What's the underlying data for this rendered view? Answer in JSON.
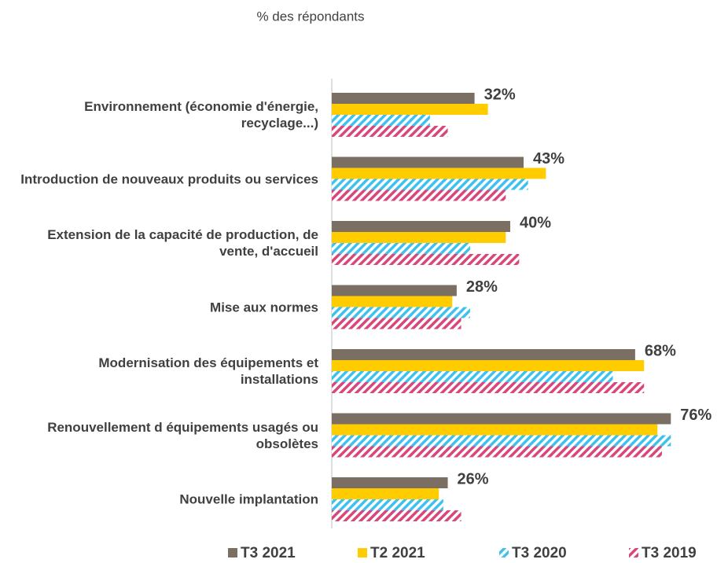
{
  "chart_data": {
    "type": "bar",
    "orientation": "horizontal",
    "subtitle": "% des répondants",
    "categories": [
      "Environnement (économie d'énergie, recyclage...)",
      "Introduction de nouveaux produits ou services",
      "Extension de la capacité de production, de vente, d'accueil",
      "Mise aux normes",
      "Modernisation des équipements et installations",
      "Renouvellement d équipements usagés ou obsolètes",
      "Nouvelle implantation"
    ],
    "series": [
      {
        "name": "T3 2021",
        "color": "#7b6f63",
        "pattern": "solid",
        "values": [
          32,
          43,
          40,
          28,
          68,
          76,
          26
        ],
        "value_labels": [
          "32%",
          "43%",
          "40%",
          "28%",
          "68%",
          "76%",
          "26%"
        ]
      },
      {
        "name": "T2 2021",
        "color": "#ffcc00",
        "pattern": "solid",
        "values": [
          35,
          48,
          39,
          27,
          70,
          73,
          24
        ]
      },
      {
        "name": "T3 2020",
        "color": "#3fc1ef",
        "pattern": "hatch",
        "values": [
          22,
          44,
          31,
          31,
          63,
          76,
          25
        ]
      },
      {
        "name": "T3 2019",
        "color": "#d9467a",
        "pattern": "hatch",
        "values": [
          26,
          39,
          42,
          29,
          70,
          74,
          29
        ]
      }
    ],
    "xlim": [
      0,
      80
    ],
    "legend": "bottom"
  }
}
